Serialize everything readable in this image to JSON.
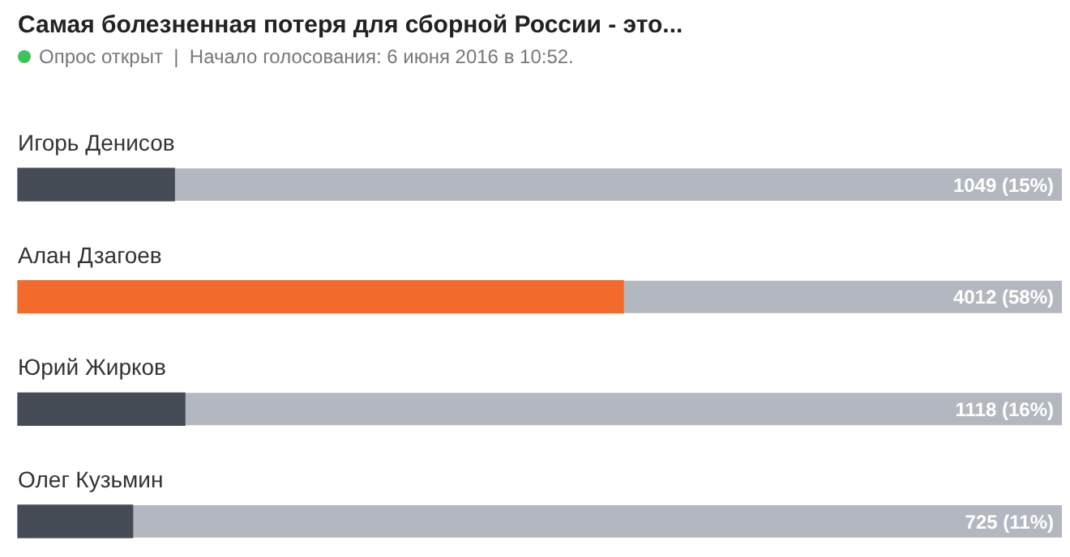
{
  "chart_data": {
    "type": "bar",
    "orientation": "horizontal",
    "title": "Самая болезненная потеря для сборной России - это...",
    "subtitle": "Опрос открыт  |  Начало голосования: 6 июня 2016 в 10:52.",
    "categories": [
      "Игорь Денисов",
      "Алан Дзагоев",
      "Юрий Жирков",
      "Олег Кузьмин"
    ],
    "values": [
      15,
      58,
      16,
      11
    ],
    "colors": [
      "#464c55",
      "#f26b2c",
      "#464c55",
      "#464c55"
    ],
    "value_labels": [
      "1049 (15%)",
      "4012 (58%)",
      "1118 (16%)",
      "725 (11%)"
    ],
    "xlim": [
      0,
      100
    ],
    "legend": false
  }
}
